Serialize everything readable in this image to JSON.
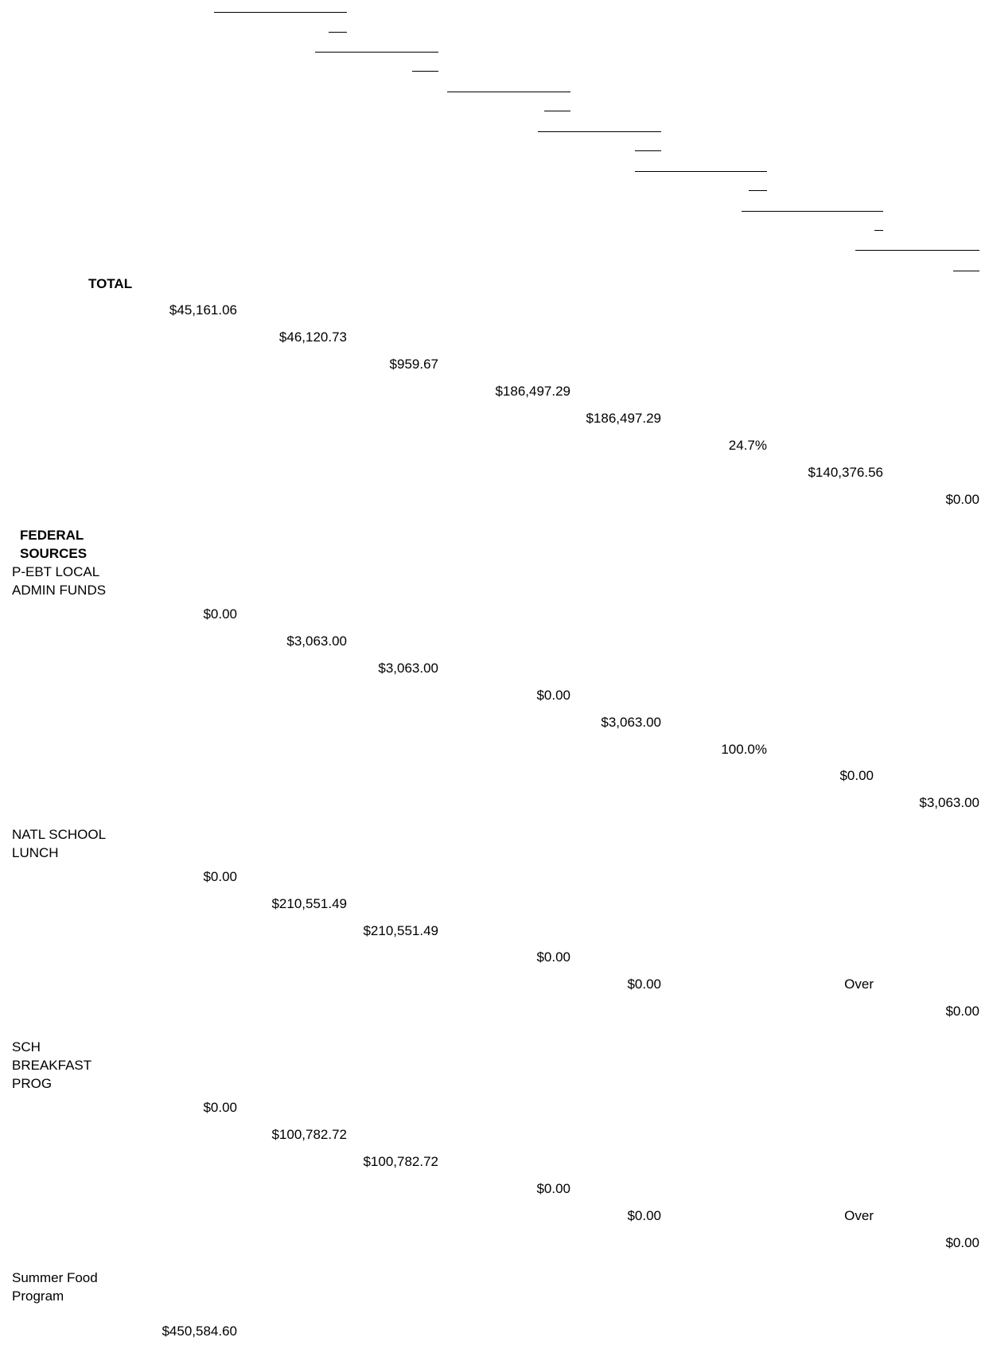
{
  "total": {
    "label": "TOTAL",
    "values": [
      "$45,161.06",
      "$46,120.73",
      "$959.67",
      "$186,497.29",
      "$186,497.29",
      "24.7%",
      "$140,376.56",
      "$0.00"
    ]
  },
  "section": {
    "line1": "FEDERAL",
    "line2": "SOURCES"
  },
  "rows": [
    {
      "label_lines": [
        "P-EBT LOCAL",
        "ADMIN FUNDS"
      ],
      "values": [
        "$0.00",
        "$3,063.00",
        "$3,063.00",
        "$0.00",
        "$3,063.00",
        "100.0%",
        "$0.00",
        "$3,063.00"
      ]
    },
    {
      "label_lines": [
        "NATL SCHOOL",
        "LUNCH"
      ],
      "values": [
        "$0.00",
        "$210,551.49",
        "$210,551.49",
        "$0.00",
        "$0.00",
        "Over",
        "$0.00"
      ]
    },
    {
      "label_lines": [
        "SCH",
        "BREAKFAST",
        "PROG"
      ],
      "values": [
        "$0.00",
        "$100,782.72",
        "$100,782.72",
        "$0.00",
        "$0.00",
        "Over",
        "$0.00"
      ]
    },
    {
      "label_lines": [
        "Summer Food",
        "Program"
      ],
      "values": [
        "$450,584.60"
      ]
    }
  ]
}
